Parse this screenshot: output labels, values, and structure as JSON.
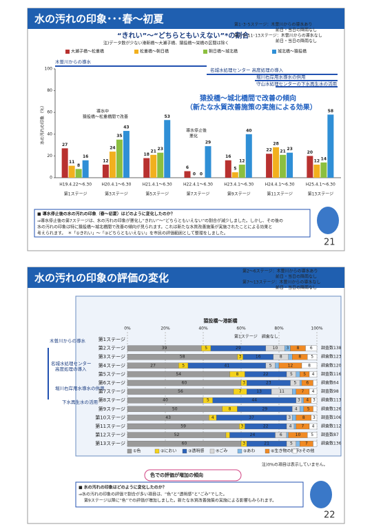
{
  "slide1": {
    "title": "水の汚れの印象･･･春～初夏",
    "legend_notes": [
      "第1･3･5ステージ：木曽川からの導水あり",
      "前日・当日の降雨なし",
      "第7･9･11･13ステージ：木曽川からの導水なし",
      "前日・当日の降雨なし"
    ],
    "annotations": [
      "木曽川からの導水",
      "名城水処理センター 高度処理の導入",
      "堀川右岸用水導水の供用",
      "守山水処理センターの下水再生水の活用",
      "猿投橋～城北橋間で改善の傾向",
      "（新たな水質改善施策の実施による効果）",
      "導水中",
      "猿投橋～松重橋間で改善",
      "導水停止後",
      "悪化"
    ],
    "question": "■ 導水停止後の水の汚れの印象（春～初夏）はどのように変化したのか？",
    "answer": [
      "⇒導水停止後の第7ステージは、水の汚れの印象が悪化し“きれい”～“どちらともいえない”の割合が減少しました。しかし、その後の",
      "水の汚れの印象は特に猿投橋～城北橋間で改善の傾向が見られます。これは新たな水質改善施策が実施されたことによる効果と",
      "考えられます。　＊「①きれい」～「③どちらともいえない」を市民の評価範囲として整理をしました。"
    ],
    "page": "21"
  },
  "slide2": {
    "title": "水の汚れの印象の評価の変化",
    "legend_notes": [
      "第2～6ステージ：木曽川からの導水あり",
      "前日・当日の降雨なし",
      "第7～13ステージ：木曽川からの導水なし",
      "前日・当日の降雨なし"
    ],
    "annotations": [
      "木曽川からの導水",
      "名城水処理センター",
      "高度処理の導入",
      "堀川右岸用水導水の供用",
      "下水再生水の活用",
      "第1ステージ　調査なし"
    ],
    "note": "注)0%の項目は表示していません。",
    "callout": "色での評価が増加の傾向",
    "question": "■ 水の汚れの印象はどのように変化したのか？",
    "answer": [
      "⇒水の汚れの印象の評価で割合が多い項目は、“色”と“透明感”と“ごみ”でした。",
      "第9ステージ以降に“色”での評価が増加しました。新たな水質改善施策の実施による影響もみられます。"
    ],
    "page": "22"
  },
  "chart_data": [
    {
      "type": "bar",
      "title": "“きれい”～“どちらともいえない”*の割合",
      "subtitle": "注)データ数が少ない港新橋～大瀬子橋、猿投橋～栄橋の区間は除く",
      "y_label": "水の汚れの印象（％）",
      "categories": [
        "H19.4.22～6.30",
        "H20.4.1～6.30",
        "H21.4.1～6.30",
        "H22.4.1～6.30",
        "H23.4.1～6.30",
        "H24.4.1～6.30",
        "H25.4.1～6.30"
      ],
      "stages": [
        "第1ステージ",
        "第3ステージ",
        "第5ステージ",
        "第7ステージ",
        "第9ステージ",
        "第11ステージ",
        "第13ステージ"
      ],
      "series": [
        {
          "name": "大瀬子橋～松重橋",
          "color": "#b8312f",
          "values": [
            27,
            12,
            18,
            6,
            16,
            22,
            20
          ]
        },
        {
          "name": "松重橋～朝日橋",
          "color": "#f2b01e",
          "values": [
            11,
            24,
            21,
            0,
            5,
            28,
            12
          ]
        },
        {
          "name": "朝日橋～城北橋",
          "color": "#8cbf3f",
          "values": [
            8,
            35,
            23,
            0,
            12,
            21,
            14
          ]
        },
        {
          "name": "城北橋～猿投橋",
          "color": "#2f8fd6",
          "values": [
            16,
            43,
            53,
            29,
            40,
            23,
            58
          ]
        }
      ],
      "ylim": [
        0,
        100
      ],
      "yticks": [
        0,
        20,
        40,
        60,
        80,
        100
      ]
    },
    {
      "type": "stacked_barh",
      "title": "猿投橋～港新橋",
      "categories": [
        "第1ステージ",
        "第2ステージ",
        "第3ステージ",
        "第4ステージ",
        "第5ステージ",
        "第6ステージ",
        "第7ステージ",
        "第8ステージ",
        "第9ステージ",
        "第10ステージ",
        "第11ステージ",
        "第12ステージ",
        "第13ステージ"
      ],
      "counts": [
        null,
        "調査数138",
        "調査数123",
        "調査数120",
        "調査数116",
        "調査数64",
        "調査数98",
        "調査数113",
        "調査数126",
        "調査数106",
        "調査数112",
        "調査数87",
        "調査数136"
      ],
      "series": [
        {
          "name": "①色",
          "color": "#9a9a9a",
          "values": [
            null,
            39,
            58,
            27,
            54,
            60,
            56,
            40,
            50,
            43,
            59,
            52,
            60
          ]
        },
        {
          "name": "②におい",
          "color": "#f4d21c",
          "values": [
            null,
            5,
            3,
            5,
            8,
            3,
            7,
            5,
            8,
            4,
            3,
            2,
            3
          ]
        },
        {
          "name": "③透明感",
          "color": "#2d63b8",
          "values": [
            null,
            29,
            16,
            41,
            22,
            23,
            13,
            44,
            29,
            37,
            22,
            24,
            21
          ]
        },
        {
          "name": "④ごみ",
          "color": "#d9d9d9",
          "values": [
            null,
            10,
            8,
            5,
            5,
            5,
            11,
            3,
            4,
            3,
            4,
            6,
            5
          ]
        },
        {
          "name": "⑤あわ",
          "color": "#7fb8e8",
          "values": [
            null,
            3,
            2,
            2,
            2,
            1,
            2,
            1,
            2,
            2,
            1,
            1,
            2
          ]
        },
        {
          "name": "⑥生き物の様子",
          "color": "#f08a24",
          "values": [
            null,
            8,
            8,
            12,
            5,
            6,
            7,
            4,
            5,
            8,
            7,
            10,
            7
          ]
        },
        {
          "name": "⑦その他",
          "color": "#ffffff",
          "values": [
            null,
            6,
            5,
            8,
            4,
            2,
            4,
            3,
            2,
            3,
            4,
            5,
            2
          ]
        }
      ],
      "xlim": [
        0,
        100
      ],
      "xticks": [
        {
          "value": 0,
          "label": "0%"
        },
        {
          "value": 20,
          "label": "20%"
        },
        {
          "value": 40,
          "label": "40%"
        },
        {
          "value": 60,
          "label": "60%"
        },
        {
          "value": 80,
          "label": "80%"
        },
        {
          "value": 100,
          "label": "100%"
        }
      ]
    }
  ]
}
